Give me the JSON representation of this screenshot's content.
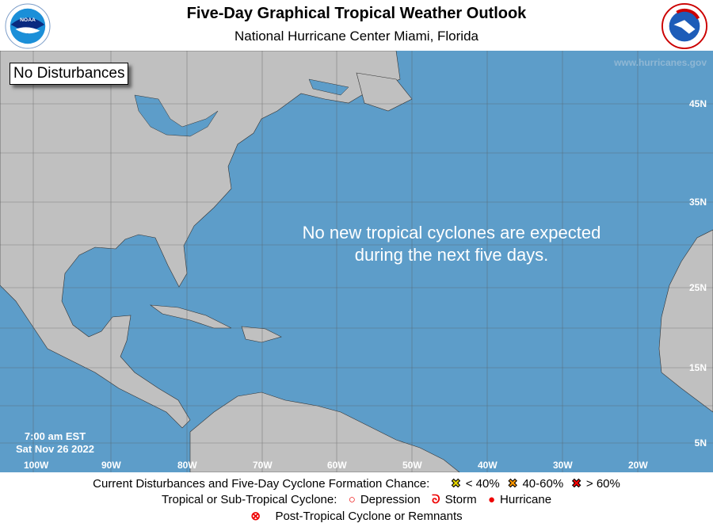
{
  "header": {
    "title": "Five-Day Graphical Tropical Weather Outlook",
    "subtitle": "National Hurricane Center  Miami, Florida",
    "left_logo": "NOAA",
    "right_logo": "NATIONAL WEATHER SERVICE"
  },
  "map": {
    "badge": "No Disturbances",
    "website": "www.hurricanes.gov",
    "message_line1": "No new tropical cyclones are expected",
    "message_line2": "during the next five days.",
    "time": "7:00 am EST",
    "date": "Sat Nov 26 2022",
    "lon_labels": [
      "100W",
      "90W",
      "80W",
      "70W",
      "60W",
      "50W",
      "40W",
      "30W",
      "20W"
    ],
    "lat_labels": [
      "45N",
      "35N",
      "25N",
      "15N",
      "5N"
    ],
    "colors": {
      "ocean": "#5d9dc9",
      "land": "#c0c0c0"
    }
  },
  "legend": {
    "row1_label": "Current Disturbances and Five-Day Cyclone Formation Chance:",
    "low": "< 40%",
    "mid": "40-60%",
    "high": "> 60%",
    "row2_label": "Tropical or Sub-Tropical Cyclone:",
    "depression": "Depression",
    "storm": "Storm",
    "hurricane": "Hurricane",
    "row3_label": "Post-Tropical Cyclone or Remnants",
    "colors": {
      "low": "#ffff00",
      "mid": "#ff9900",
      "high": "#ff0000"
    }
  }
}
